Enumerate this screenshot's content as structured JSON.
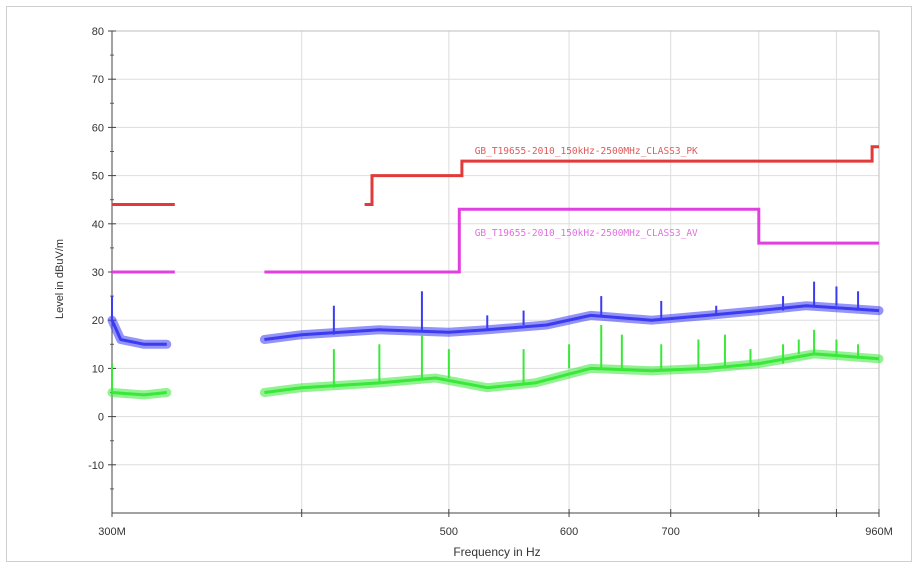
{
  "chart_data": {
    "type": "line",
    "xlabel": "Frequency in Hz",
    "ylabel": "Level in dBuV/m",
    "xlim_mhz": [
      300,
      960
    ],
    "ylim": [
      -20,
      80
    ],
    "x_scale": "log",
    "grid": true,
    "y_ticks": [
      80,
      70,
      60,
      50,
      40,
      30,
      20,
      10,
      0,
      -10
    ],
    "x_ticks": [
      {
        "mhz": 300,
        "label": "300M"
      },
      {
        "mhz": 400,
        "label": ""
      },
      {
        "mhz": 500,
        "label": "500"
      },
      {
        "mhz": 600,
        "label": "600"
      },
      {
        "mhz": 700,
        "label": "700"
      },
      {
        "mhz": 800,
        "label": ""
      },
      {
        "mhz": 900,
        "label": ""
      },
      {
        "mhz": 960,
        "label": "960M"
      }
    ],
    "limit_lines": [
      {
        "name": "GB_T19655-2010_150kHz-2500MHz_CLASS3_PK",
        "color": "#e03a3a",
        "label_color": "#e05a5a",
        "label_at": {
          "mhz": 520,
          "level": 54.5
        },
        "segments": [
          [
            [
              300,
              44
            ],
            [
              330,
              44
            ]
          ],
          [
            [
              440,
              44
            ],
            [
              445,
              44
            ],
            [
              445,
              50
            ],
            [
              510,
              50
            ],
            [
              510,
              53
            ],
            [
              950,
              53
            ],
            [
              950,
              56
            ],
            [
              960,
              56
            ]
          ]
        ]
      },
      {
        "name": "GB_T19655-2010_150kHz-2500MHz_CLASS3_AV",
        "color": "#e040e0",
        "label_color": "#e070e0",
        "label_at": {
          "mhz": 520,
          "level": 37.5
        },
        "segments": [
          [
            [
              300,
              30
            ],
            [
              330,
              30
            ]
          ],
          [
            [
              378,
              30
            ],
            [
              508,
              30
            ],
            [
              508,
              43
            ],
            [
              800,
              43
            ],
            [
              800,
              36
            ],
            [
              960,
              36
            ]
          ]
        ]
      }
    ],
    "series": [
      {
        "color": "#3b3bf2",
        "segments": [
          [
            [
              300,
              20
            ],
            [
              304,
              16
            ],
            [
              315,
              15
            ],
            [
              326,
              15
            ]
          ],
          [
            [
              378,
              16
            ],
            [
              400,
              17
            ],
            [
              450,
              18
            ],
            [
              500,
              17.5
            ],
            [
              530,
              18
            ],
            [
              580,
              19
            ],
            [
              620,
              21
            ],
            [
              680,
              20
            ],
            [
              740,
              21
            ],
            [
              800,
              22
            ],
            [
              860,
              23
            ],
            [
              960,
              22
            ]
          ]
        ],
        "spikes": [
          [
            300,
            25
          ],
          [
            420,
            23
          ],
          [
            480,
            26
          ],
          [
            530,
            21
          ],
          [
            560,
            22
          ],
          [
            630,
            25
          ],
          [
            690,
            24
          ],
          [
            750,
            23
          ],
          [
            780,
            22
          ],
          [
            830,
            25
          ],
          [
            870,
            28
          ],
          [
            900,
            27
          ],
          [
            930,
            26
          ]
        ]
      },
      {
        "color": "#39e839",
        "segments": [
          [
            [
              300,
              5
            ],
            [
              315,
              4.5
            ],
            [
              326,
              5
            ]
          ],
          [
            [
              378,
              5
            ],
            [
              400,
              6
            ],
            [
              450,
              7
            ],
            [
              490,
              8
            ],
            [
              530,
              6
            ],
            [
              570,
              7
            ],
            [
              620,
              10
            ],
            [
              680,
              9.5
            ],
            [
              740,
              10
            ],
            [
              800,
              11
            ],
            [
              870,
              13
            ],
            [
              960,
              12
            ]
          ]
        ],
        "spikes": [
          [
            300,
            11
          ],
          [
            420,
            14
          ],
          [
            450,
            15
          ],
          [
            480,
            17
          ],
          [
            500,
            14
          ],
          [
            560,
            14
          ],
          [
            600,
            15
          ],
          [
            630,
            19
          ],
          [
            650,
            17
          ],
          [
            690,
            15
          ],
          [
            730,
            16
          ],
          [
            760,
            17
          ],
          [
            790,
            14
          ],
          [
            830,
            15
          ],
          [
            850,
            16
          ],
          [
            870,
            18
          ],
          [
            900,
            16
          ],
          [
            930,
            15
          ]
        ]
      }
    ]
  }
}
